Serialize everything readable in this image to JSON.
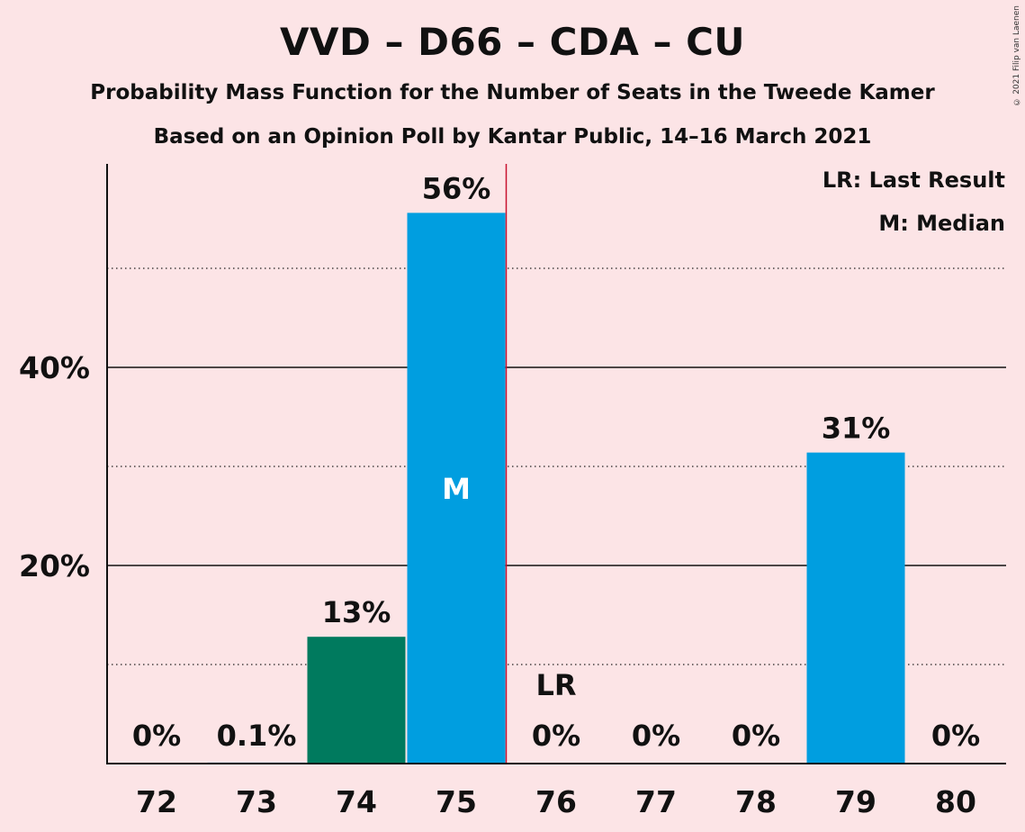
{
  "title": "VVD – D66 – CDA – CU",
  "subtitle": "Probability Mass Function for the Number of Seats in the Tweede Kamer",
  "subtitle2": "Based on an Opinion Poll by Kantar Public, 14–16 March 2021",
  "copyright": "© 2021 Filip van Laenen",
  "legend": {
    "last_result": "LR: Last Result",
    "median": "M: Median"
  },
  "colors": {
    "background": "#fce4e6",
    "bar": "#009ee0",
    "last_result_bar": "#007a5e",
    "marker_line": "#c8102e"
  },
  "chart_data": {
    "type": "bar",
    "categories": [
      "72",
      "73",
      "74",
      "75",
      "76",
      "77",
      "78",
      "79",
      "80"
    ],
    "values": [
      0,
      0.1,
      12.8,
      55.6,
      0,
      0,
      0,
      31.4,
      0
    ],
    "value_labels": [
      "0%",
      "0.1%",
      "13%",
      "56%",
      "0%",
      "0%",
      "0%",
      "31%",
      "0%"
    ],
    "ylim": [
      0,
      60
    ],
    "yticks": [
      {
        "value": 20,
        "label": "20%"
      },
      {
        "value": 40,
        "label": "40%"
      }
    ],
    "minor_gridlines": [
      10,
      30,
      50
    ],
    "median_category": "75",
    "median_label": "M",
    "last_result_category": "76",
    "last_result_label": "LR",
    "highlight_category": "74",
    "grid": true,
    "legend_position": "top-right"
  }
}
